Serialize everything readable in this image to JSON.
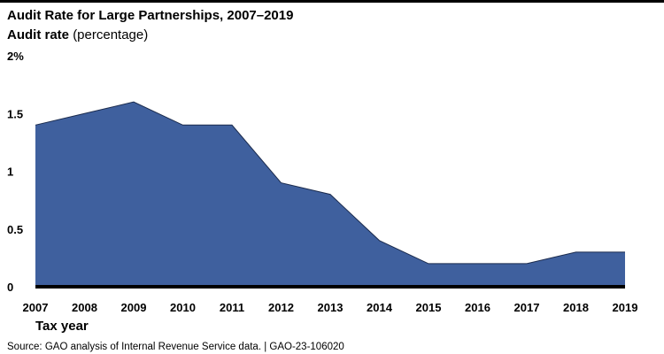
{
  "chart_data": {
    "type": "area",
    "title": "Audit Rate for Large Partnerships, 2007–2019",
    "y_label_bold": "Audit rate",
    "y_label_unit": "(percentage)",
    "x_label": "Tax year",
    "source": "Source: GAO analysis of Internal Revenue Service data.  |  GAO-23-106020",
    "categories": [
      "2007",
      "2008",
      "2009",
      "2010",
      "2011",
      "2012",
      "2013",
      "2014",
      "2015",
      "2016",
      "2017",
      "2018",
      "2019"
    ],
    "values": [
      1.4,
      1.5,
      1.6,
      1.4,
      1.4,
      0.9,
      0.8,
      0.4,
      0.2,
      0.2,
      0.2,
      0.3,
      0.3
    ],
    "color": "#3f609e",
    "ylim": [
      0,
      2
    ],
    "yticks": [
      0,
      0.5,
      1,
      1.5,
      {
        "value": 2,
        "label": "2%"
      }
    ]
  }
}
